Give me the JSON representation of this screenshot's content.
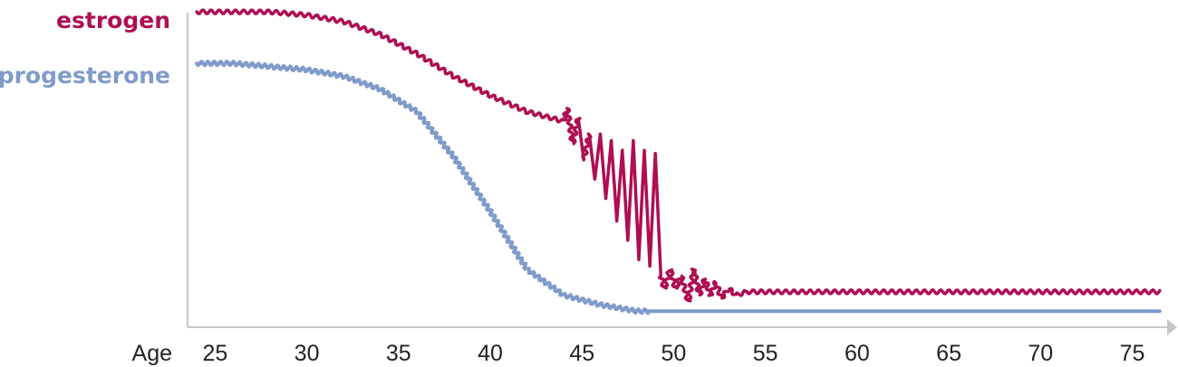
{
  "chart_data": {
    "type": "line",
    "x_axis_label": "Age",
    "x_ticks": [
      "25",
      "30",
      "35",
      "40",
      "45",
      "50",
      "55",
      "60",
      "65",
      "70",
      "75"
    ],
    "xlim": [
      23.5,
      77
    ],
    "y_axis_label": "",
    "y_tick_labels": [],
    "ylim": [
      0,
      1
    ],
    "legend": "labels left of y-axis, aligned with series start",
    "grid": false,
    "series": [
      {
        "name": "estrogen",
        "color": "#ae0e52",
        "values": [
          {
            "x": 24,
            "y": 0.98
          },
          {
            "x": 26,
            "y": 0.98
          },
          {
            "x": 28,
            "y": 0.98
          },
          {
            "x": 30,
            "y": 0.97
          },
          {
            "x": 32,
            "y": 0.95
          },
          {
            "x": 34,
            "y": 0.91
          },
          {
            "x": 36,
            "y": 0.85
          },
          {
            "x": 38,
            "y": 0.78
          },
          {
            "x": 40,
            "y": 0.72
          },
          {
            "x": 42,
            "y": 0.67
          },
          {
            "x": 44,
            "y": 0.64
          },
          {
            "x": 44.2,
            "y": 0.68
          },
          {
            "x": 44.5,
            "y": 0.57
          },
          {
            "x": 44.8,
            "y": 0.65
          },
          {
            "x": 45.1,
            "y": 0.52
          },
          {
            "x": 45.4,
            "y": 0.6
          },
          {
            "x": 45.7,
            "y": 0.46
          },
          {
            "x": 46.0,
            "y": 0.6
          },
          {
            "x": 46.3,
            "y": 0.4
          },
          {
            "x": 46.6,
            "y": 0.58
          },
          {
            "x": 46.9,
            "y": 0.33
          },
          {
            "x": 47.2,
            "y": 0.55
          },
          {
            "x": 47.5,
            "y": 0.27
          },
          {
            "x": 47.8,
            "y": 0.58
          },
          {
            "x": 48.1,
            "y": 0.21
          },
          {
            "x": 48.4,
            "y": 0.55
          },
          {
            "x": 48.7,
            "y": 0.19
          },
          {
            "x": 49.0,
            "y": 0.54
          },
          {
            "x": 49.3,
            "y": 0.16
          },
          {
            "x": 49.5,
            "y": 0.12
          },
          {
            "x": 49.8,
            "y": 0.18
          },
          {
            "x": 50.1,
            "y": 0.12
          },
          {
            "x": 50.4,
            "y": 0.16
          },
          {
            "x": 50.8,
            "y": 0.08
          },
          {
            "x": 51.1,
            "y": 0.18
          },
          {
            "x": 51.4,
            "y": 0.1
          },
          {
            "x": 51.7,
            "y": 0.15
          },
          {
            "x": 52.0,
            "y": 0.1
          },
          {
            "x": 52.3,
            "y": 0.14
          },
          {
            "x": 52.6,
            "y": 0.09
          },
          {
            "x": 53.0,
            "y": 0.12
          },
          {
            "x": 53.4,
            "y": 0.1
          },
          {
            "x": 54,
            "y": 0.11
          },
          {
            "x": 76.5,
            "y": 0.11
          }
        ]
      },
      {
        "name": "progesterone",
        "color": "#7f9bca",
        "values": [
          {
            "x": 24,
            "y": 0.82
          },
          {
            "x": 26,
            "y": 0.82
          },
          {
            "x": 28,
            "y": 0.81
          },
          {
            "x": 30,
            "y": 0.8
          },
          {
            "x": 32,
            "y": 0.78
          },
          {
            "x": 34,
            "y": 0.74
          },
          {
            "x": 36,
            "y": 0.67
          },
          {
            "x": 38,
            "y": 0.53
          },
          {
            "x": 40,
            "y": 0.36
          },
          {
            "x": 42,
            "y": 0.18
          },
          {
            "x": 44,
            "y": 0.1
          },
          {
            "x": 46,
            "y": 0.07
          },
          {
            "x": 48,
            "y": 0.05
          },
          {
            "x": 48.6,
            "y": 0.05
          },
          {
            "x": 76.5,
            "y": 0.05
          }
        ]
      }
    ]
  }
}
